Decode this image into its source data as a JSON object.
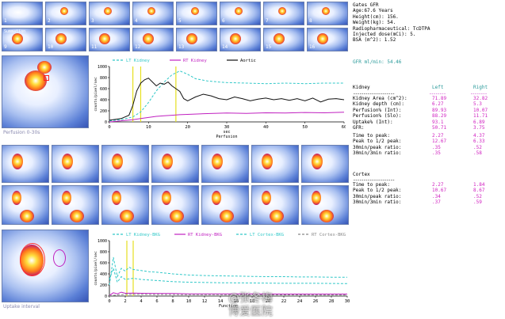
{
  "thumbs_top": {
    "numbers": [
      "1",
      "2",
      "3",
      "4",
      "5",
      "6",
      "7",
      "8"
    ],
    "labels_row2": [
      "Summation",
      "",
      "",
      "",
      "",
      "",
      "",
      ""
    ],
    "numbers_row2": [
      "9",
      "10",
      "11",
      "12",
      "13",
      "14",
      "15",
      "16"
    ]
  },
  "perfusion_caption": "Perfusion 0-30s",
  "uptake_caption": "Uptake interval",
  "info": {
    "lines": [
      "Gates GFR",
      "Age:67.6 Years",
      "Height(cm): 156.",
      "Weight(kg): 54.",
      "Radiopharmaceutical: TcDTPA",
      "Injected dose(mCi): 5.",
      "BSA (m^2): 1.52"
    ],
    "gfr_norm": "GFR ml/min: 54.46"
  },
  "kidney_table": {
    "title": "Kidney",
    "col_left": "Left",
    "col_right": "Right",
    "rows": [
      {
        "label": "Kidney Area (cm^2):",
        "left": "71.89",
        "right": "32.82"
      },
      {
        "label": "Kidney depth (cm):",
        "left": "6.27",
        "right": "5.3"
      },
      {
        "label": "Perfusion% (Int):",
        "left": "89.93",
        "right": "10.07"
      },
      {
        "label": "Perfusion% (Slo):",
        "left": "88.29",
        "right": "11.71"
      },
      {
        "label": "Uptake% (Int):",
        "left": "93.1",
        "right": "6.89"
      },
      {
        "label": "GFR:",
        "left": "50.71",
        "right": "3.75"
      }
    ]
  },
  "timing_table": {
    "rows": [
      {
        "label": "Time to peak:",
        "left": "2.27",
        "right": "4.37"
      },
      {
        "label": "Peak to 1/2 peak:",
        "left": "12.67",
        "right": "6.33"
      },
      {
        "label": "30min/peak ratio:",
        "left": ".35",
        "right": ".52"
      },
      {
        "label": "30min/3min ratio:",
        "left": ".35",
        "right": ".58"
      }
    ]
  },
  "cortex_table": {
    "title": "Cortex",
    "rows": [
      {
        "label": "Time to peak:",
        "left": "2.27",
        "right": "1.84"
      },
      {
        "label": "Peak to 1/2 peak:",
        "left": "10.67",
        "right": "8.67"
      },
      {
        "label": "30min/peak ratio:",
        "left": ".34",
        "right": ".52"
      },
      {
        "label": "30min/3min ratio:",
        "left": ".37",
        "right": ".59"
      }
    ]
  },
  "watermark": {
    "line1": "@张冬梅",
    "line2": "博爱医院"
  },
  "chart_data": [
    {
      "type": "line",
      "title": "Perfusion",
      "xlabel": "Perfusion",
      "x_unit": "sec",
      "ylabel": "counts/pixel/sec",
      "xlim": [
        0,
        60
      ],
      "ylim": [
        0,
        1000
      ],
      "xticks": [
        0,
        10,
        20,
        30,
        40,
        50,
        60
      ],
      "yticks": [
        0,
        200,
        400,
        600,
        800,
        1000
      ],
      "legend": [
        "LT Kidney",
        "RT Kidney",
        "Aortic"
      ],
      "markers_x": [
        6,
        8,
        17
      ],
      "series": [
        {
          "name": "LT Kidney",
          "color": "#30c8c8",
          "dash": true,
          "x": [
            0,
            3,
            6,
            8,
            10,
            12,
            14,
            16,
            18,
            20,
            22,
            25,
            28,
            30,
            35,
            40,
            45,
            50,
            55,
            60
          ],
          "y": [
            20,
            40,
            90,
            180,
            350,
            560,
            720,
            850,
            920,
            860,
            780,
            740,
            720,
            710,
            700,
            690,
            700,
            690,
            700,
            700
          ]
        },
        {
          "name": "RT Kidney",
          "color": "#c020c0",
          "dash": false,
          "x": [
            0,
            3,
            6,
            8,
            10,
            12,
            14,
            16,
            18,
            20,
            25,
            30,
            35,
            40,
            45,
            50,
            55,
            60
          ],
          "y": [
            0,
            20,
            40,
            60,
            80,
            100,
            110,
            120,
            130,
            135,
            150,
            160,
            155,
            165,
            160,
            170,
            165,
            175
          ]
        },
        {
          "name": "Aortic",
          "color": "#111111",
          "dash": false,
          "x": [
            0,
            3,
            5,
            6,
            7,
            8,
            9,
            10,
            11,
            12,
            13,
            14,
            15,
            16,
            17,
            18,
            19,
            20,
            22,
            24,
            26,
            28,
            30,
            32,
            34,
            36,
            38,
            40,
            42,
            44,
            46,
            48,
            50,
            52,
            54,
            56,
            58,
            60
          ],
          "y": [
            30,
            60,
            120,
            300,
            560,
            700,
            760,
            790,
            720,
            650,
            700,
            680,
            720,
            650,
            600,
            550,
            420,
            380,
            450,
            500,
            470,
            420,
            400,
            450,
            420,
            380,
            410,
            430,
            400,
            420,
            390,
            420,
            380,
            430,
            360,
            410,
            420,
            400
          ]
        }
      ]
    },
    {
      "type": "line",
      "title": "Uptake",
      "xlabel": "Function",
      "ylabel": "counts/pixel/sec",
      "xlim": [
        0,
        30
      ],
      "ylim": [
        0,
        1000
      ],
      "xticks": [
        0,
        2,
        4,
        6,
        8,
        10,
        12,
        14,
        16,
        18,
        20,
        22,
        24,
        26,
        28,
        30
      ],
      "yticks": [
        0,
        200,
        400,
        600,
        800,
        1000
      ],
      "legend": [
        "LT Kidney-BKG",
        "RT Kidney-BKG",
        "LT Cortex-BKG",
        "RT Cortex-BKG"
      ],
      "markers_x": [
        2.2,
        3.0
      ],
      "series": [
        {
          "name": "LT Kidney-BKG",
          "color": "#30c8c8",
          "dash": true,
          "x": [
            0,
            0.5,
            1,
            1.5,
            2,
            2.5,
            3,
            4,
            5,
            6,
            8,
            10,
            12,
            14,
            16,
            18,
            20,
            22,
            24,
            26,
            28,
            30
          ],
          "y": [
            200,
            700,
            350,
            500,
            450,
            520,
            480,
            460,
            440,
            430,
            400,
            380,
            370,
            365,
            360,
            355,
            350,
            350,
            345,
            345,
            340,
            340
          ]
        },
        {
          "name": "RT Kidney-BKG",
          "color": "#c020c0",
          "dash": false,
          "x": [
            0,
            0.5,
            1,
            1.5,
            2,
            3,
            4,
            6,
            8,
            10,
            14,
            18,
            22,
            26,
            30
          ],
          "y": [
            10,
            60,
            40,
            70,
            50,
            55,
            50,
            45,
            45,
            40,
            40,
            40,
            35,
            35,
            35
          ]
        },
        {
          "name": "LT Cortex-BKG",
          "color": "#30c8c8",
          "dash": true,
          "x": [
            0,
            0.5,
            1,
            1.5,
            2,
            3,
            4,
            6,
            8,
            10,
            14,
            18,
            22,
            26,
            30
          ],
          "y": [
            300,
            500,
            250,
            350,
            300,
            320,
            300,
            280,
            260,
            250,
            240,
            235,
            230,
            230,
            225
          ]
        },
        {
          "name": "RT Cortex-BKG",
          "color": "#888888",
          "dash": true,
          "x": [
            0,
            1,
            2,
            4,
            6,
            10,
            14,
            18,
            22,
            26,
            30
          ],
          "y": [
            5,
            20,
            30,
            30,
            28,
            25,
            25,
            22,
            22,
            20,
            20
          ]
        }
      ]
    }
  ]
}
